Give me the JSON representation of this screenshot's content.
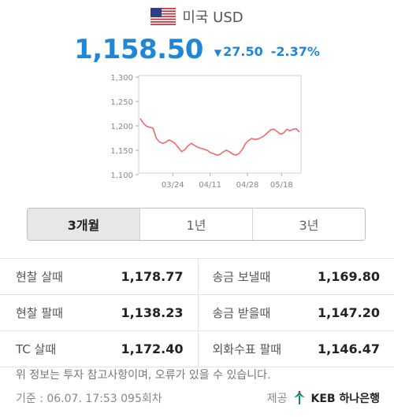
{
  "header": {
    "currency_name": "미국 USD",
    "flag": "us-flag-icon"
  },
  "rate": {
    "value": "1,158.50",
    "change_arrow": "▼",
    "change_amount": "27.50",
    "change_percent": "-2.37%",
    "color": "#1e88d6"
  },
  "chart_data": {
    "type": "line",
    "x_ticks": [
      "03/24",
      "04/11",
      "04/28",
      "05/18"
    ],
    "y_ticks": [
      "1,300",
      "1,250",
      "1,200",
      "1,150",
      "1,100"
    ],
    "ylim": [
      1100,
      1300
    ],
    "line_color": "#f06a6a",
    "series": [
      {
        "values": [
          1212,
          1202,
          1196,
          1194,
          1192,
          1172,
          1164,
          1161,
          1163,
          1168,
          1165,
          1160,
          1152,
          1144,
          1148,
          1156,
          1161,
          1157,
          1153,
          1151,
          1149,
          1147,
          1142,
          1140,
          1137,
          1138,
          1143,
          1147,
          1144,
          1139,
          1137,
          1140,
          1148,
          1160,
          1167,
          1171,
          1169,
          1170,
          1173,
          1177,
          1183,
          1189,
          1190,
          1185,
          1180,
          1182,
          1190,
          1187,
          1190,
          1191,
          1184
        ]
      }
    ]
  },
  "tabs": [
    {
      "label": "3개월",
      "active": true
    },
    {
      "label": "1년",
      "active": false
    },
    {
      "label": "3년",
      "active": false
    }
  ],
  "table": {
    "rows": [
      [
        {
          "label": "현찰 살때",
          "value": "1,178.77"
        },
        {
          "label": "송금 보낼때",
          "value": "1,169.80"
        }
      ],
      [
        {
          "label": "현찰 팔때",
          "value": "1,138.23"
        },
        {
          "label": "송금 받을때",
          "value": "1,147.20"
        }
      ],
      [
        {
          "label": "TC 살때",
          "value": "1,172.40"
        },
        {
          "label": "외화수표 팔때",
          "value": "1,146.47"
        }
      ]
    ]
  },
  "footer": {
    "notice": "위 정보는 투자 참고사항이며, 오류가 있을 수 있습니다.",
    "timestamp": "기준 : 06.07. 17:53 095회차",
    "provider_prefix": "제공",
    "provider_name": "KEB 하나은행",
    "provider_icon": "keb-hana-logo-icon"
  }
}
